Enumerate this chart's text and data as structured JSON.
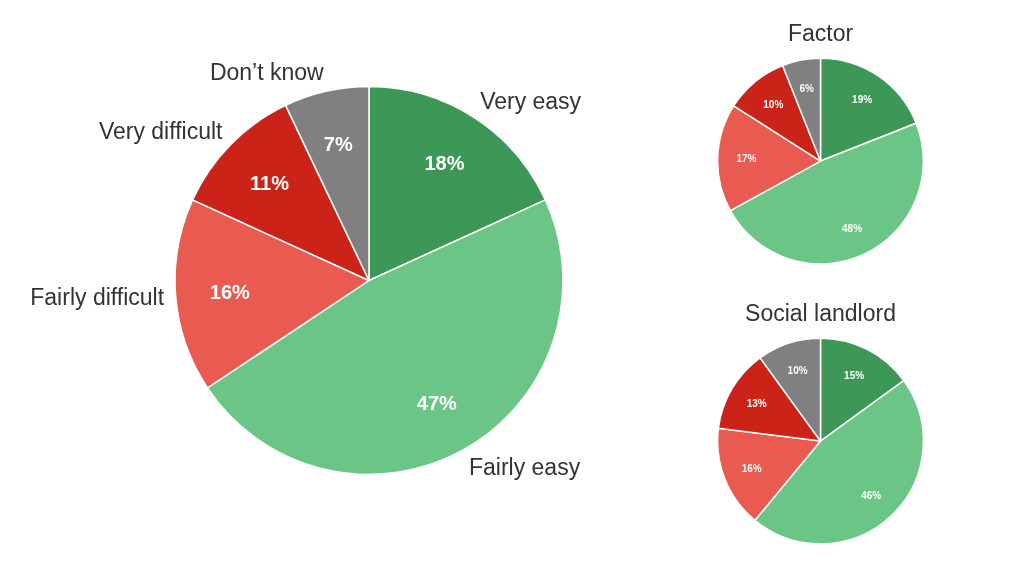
{
  "chart_data": [
    {
      "type": "pie",
      "categories": [
        "Very easy",
        "Fairly easy",
        "Fairly difficult",
        "Very difficult",
        "Don’t know"
      ],
      "values": [
        18,
        47,
        16,
        11,
        7
      ],
      "value_labels": [
        "18%",
        "47%",
        "16%",
        "11%",
        "7%"
      ],
      "colors": [
        "#3d9857",
        "#6bc587",
        "#e95b50",
        "#cc2318",
        "#808080"
      ]
    },
    {
      "type": "pie",
      "title": "Factor",
      "categories": [
        null,
        null,
        null,
        null,
        null
      ],
      "values": [
        19,
        48,
        17,
        10,
        6
      ],
      "value_labels": [
        "19%",
        "48%",
        "17%",
        "10%",
        "6%"
      ],
      "colors": [
        "#3d9857",
        "#6bc587",
        "#e95b50",
        "#cc2318",
        "#808080"
      ]
    },
    {
      "type": "pie",
      "title": "Social landlord",
      "categories": [
        null,
        null,
        null,
        null,
        null
      ],
      "values": [
        15,
        46,
        16,
        13,
        10
      ],
      "value_labels": [
        "15%",
        "46%",
        "16%",
        "13%",
        "10%"
      ],
      "colors": [
        "#3d9857",
        "#6bc587",
        "#e95b50",
        "#cc2318",
        "#808080"
      ]
    }
  ]
}
